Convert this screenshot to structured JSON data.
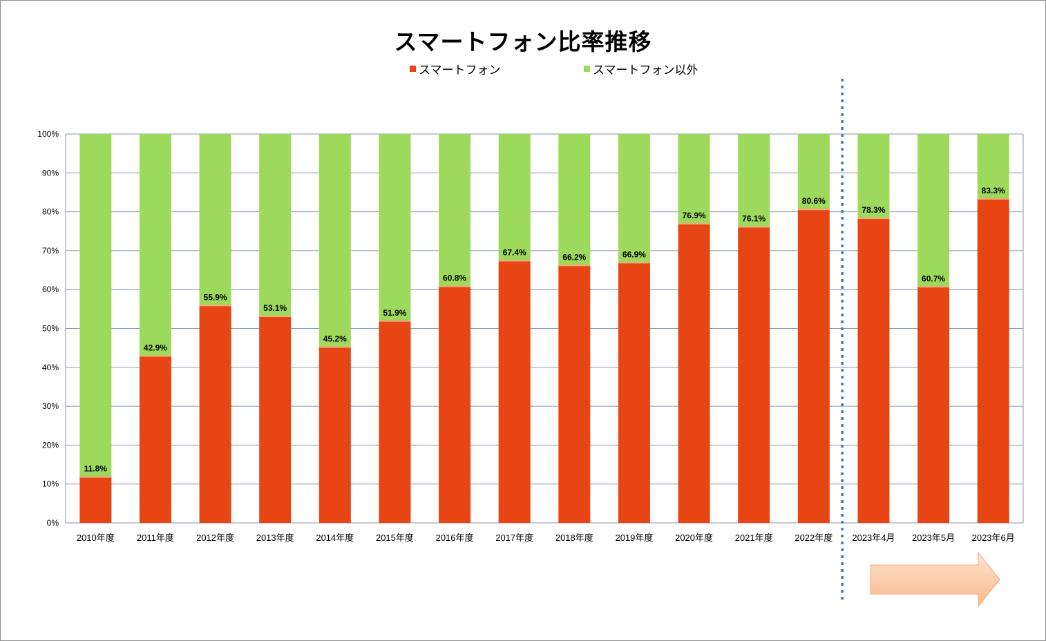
{
  "chart_data": {
    "type": "bar",
    "stacked": true,
    "title": "スマートフォン比率推移",
    "categories": [
      "2010年度",
      "2011年度",
      "2012年度",
      "2013年度",
      "2014年度",
      "2015年度",
      "2016年度",
      "2017年度",
      "2018年度",
      "2019年度",
      "2020年度",
      "2021年度",
      "2022年度",
      "2023年4月",
      "2023年5月",
      "2023年6月"
    ],
    "series": [
      {
        "name": "スマートフォン",
        "color": "#e84515",
        "values": [
          11.8,
          42.9,
          55.9,
          53.1,
          45.2,
          51.9,
          60.8,
          67.4,
          66.2,
          66.9,
          76.9,
          76.1,
          80.6,
          78.3,
          60.7,
          83.3
        ]
      },
      {
        "name": "スマートフォン以外",
        "color": "#9dd95a",
        "values": [
          88.2,
          57.1,
          44.1,
          46.9,
          54.8,
          48.1,
          39.2,
          32.6,
          33.8,
          33.1,
          23.1,
          23.9,
          19.4,
          21.7,
          39.3,
          16.7
        ]
      }
    ],
    "data_labels": [
      "11.8%",
      "42.9%",
      "55.9%",
      "53.1%",
      "45.2%",
      "51.9%",
      "60.8%",
      "67.4%",
      "66.2%",
      "66.9%",
      "76.9%",
      "76.1%",
      "80.6%",
      "78.3%",
      "60.7%",
      "83.3%"
    ],
    "yticks": [
      "0%",
      "10%",
      "20%",
      "30%",
      "40%",
      "50%",
      "60%",
      "70%",
      "80%",
      "90%",
      "100%"
    ],
    "ylim": [
      0,
      100
    ],
    "grid": true,
    "legend_position": "top",
    "divider_after_category": "2022年度",
    "divider_color": "#4472c4",
    "arrow_color": "#fbc9a3"
  }
}
